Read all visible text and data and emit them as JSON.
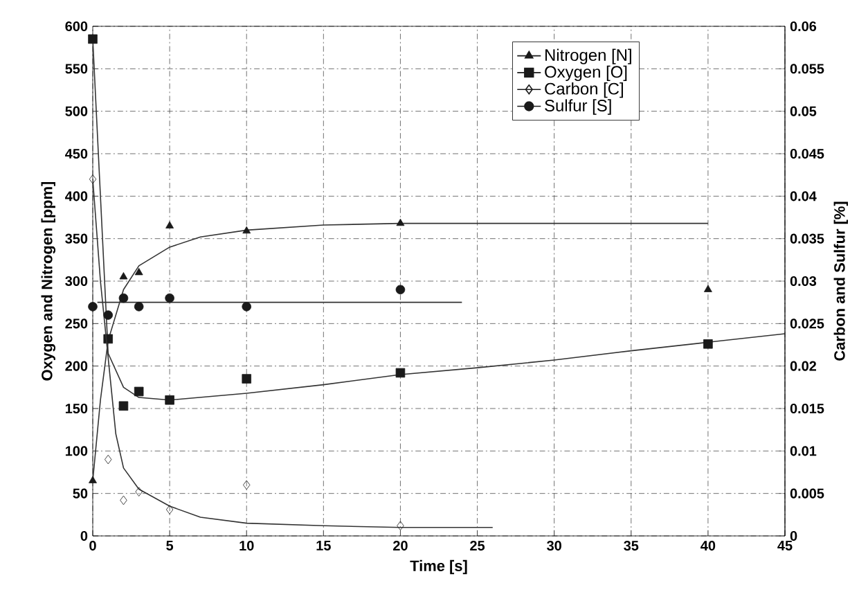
{
  "chart_data": {
    "type": "scatter",
    "xlabel": "Time [s]",
    "ylabel": "Oxygen and Nitrogen [ppm]",
    "y2label": "Carbon and Sulfur [%]",
    "xlim": [
      0,
      45
    ],
    "xticks": [
      0,
      5,
      10,
      15,
      20,
      25,
      30,
      35,
      40,
      45
    ],
    "ylim": [
      0,
      600
    ],
    "yticks": [
      0,
      50,
      100,
      150,
      200,
      250,
      300,
      350,
      400,
      450,
      500,
      550,
      600
    ],
    "y2lim": [
      0,
      0.06
    ],
    "y2ticks": [
      0,
      0.005,
      0.01,
      0.015,
      0.02,
      0.025,
      0.03,
      0.035,
      0.04,
      0.045,
      0.05,
      0.055,
      0.06
    ],
    "grid": true,
    "legend": "top right",
    "series": [
      {
        "name": "Nitrogen [N]",
        "marker": "triangle",
        "color": "#1a1a1a",
        "axis": "y",
        "x": [
          0,
          1,
          2,
          3,
          5,
          10,
          20,
          40
        ],
        "values": [
          65,
          null,
          305,
          310,
          365,
          359,
          368,
          290
        ]
      },
      {
        "name": "Oxygen [O]",
        "marker": "square",
        "color": "#1a1a1a",
        "axis": "y",
        "x": [
          0,
          1,
          2,
          3,
          5,
          10,
          20,
          40
        ],
        "values": [
          585,
          232,
          153,
          170,
          160,
          185,
          192,
          226
        ]
      },
      {
        "name": "Carbon [C]",
        "marker": "diamond",
        "color": "#1a1a1a",
        "axis": "y2",
        "x": [
          0,
          1,
          2,
          3,
          5,
          10,
          20
        ],
        "values": [
          0.042,
          0.009,
          0.0042,
          0.0052,
          0.0031,
          0.006,
          0.0012
        ]
      },
      {
        "name": "Sulfur [S]",
        "marker": "circle",
        "color": "#1a1a1a",
        "axis": "y2",
        "x": [
          0,
          1,
          2,
          3,
          5,
          10,
          20
        ],
        "values": [
          0.027,
          0.026,
          0.028,
          0.027,
          0.028,
          0.027,
          0.029
        ]
      },
      {
        "type": "line",
        "color": "#333333",
        "axis": "y",
        "x": [
          0,
          0.5,
          1,
          2,
          3,
          5,
          7,
          10,
          15,
          20,
          30,
          40
        ],
        "values": [
          65,
          160,
          230,
          290,
          318,
          340,
          352,
          360,
          366,
          368,
          368,
          368
        ]
      },
      {
        "type": "line",
        "color": "#333333",
        "axis": "y",
        "x": [
          0,
          0.5,
          1,
          2,
          3,
          5,
          10,
          15,
          20,
          25,
          30,
          35,
          40,
          45
        ],
        "values": [
          585,
          400,
          215,
          175,
          163,
          160,
          168,
          178,
          190,
          198,
          207,
          218,
          228,
          238
        ]
      },
      {
        "type": "line",
        "color": "#333333",
        "axis": "y2",
        "x": [
          0,
          0.5,
          1,
          1.5,
          2,
          3,
          5,
          7,
          10,
          15,
          20,
          26
        ],
        "values": [
          0.042,
          0.03,
          0.021,
          0.012,
          0.008,
          0.0055,
          0.0035,
          0.0022,
          0.0015,
          0.0012,
          0.001,
          0.001
        ]
      },
      {
        "type": "line",
        "color": "#333333",
        "axis": "y2",
        "x": [
          0.3,
          24
        ],
        "values": [
          0.0275,
          0.0275
        ]
      }
    ]
  }
}
